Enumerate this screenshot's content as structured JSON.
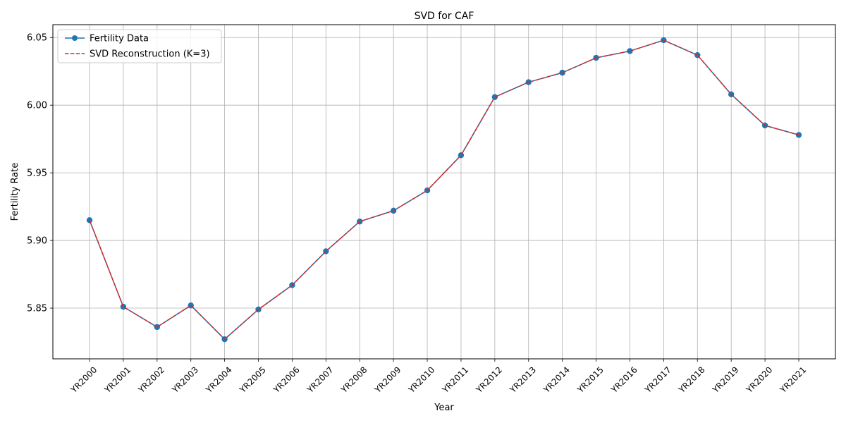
{
  "chart_data": {
    "type": "line",
    "title": "SVD for CAF",
    "xlabel": "Year",
    "ylabel": "Fertility Rate",
    "categories": [
      "YR2000",
      "YR2001",
      "YR2002",
      "YR2003",
      "YR2004",
      "YR2005",
      "YR2006",
      "YR2007",
      "YR2008",
      "YR2009",
      "YR2010",
      "YR2011",
      "YR2012",
      "YR2013",
      "YR2014",
      "YR2015",
      "YR2016",
      "YR2017",
      "YR2018",
      "YR2019",
      "YR2020",
      "YR2021"
    ],
    "series": [
      {
        "name": "Fertility Data",
        "color": "#1f77b4",
        "style": "solid-with-markers",
        "values": [
          5.915,
          5.851,
          5.836,
          5.852,
          5.827,
          5.849,
          5.867,
          5.892,
          5.914,
          5.922,
          5.937,
          5.963,
          6.006,
          6.017,
          6.024,
          6.035,
          6.04,
          6.048,
          6.037,
          6.008,
          5.985,
          5.978
        ]
      },
      {
        "name": "SVD Reconstruction (K=3)",
        "color": "#d62728",
        "style": "dashed",
        "values": [
          5.915,
          5.851,
          5.836,
          5.852,
          5.827,
          5.849,
          5.867,
          5.892,
          5.914,
          5.922,
          5.937,
          5.963,
          6.006,
          6.017,
          6.024,
          6.035,
          6.04,
          6.048,
          6.037,
          6.008,
          5.985,
          5.978
        ]
      }
    ],
    "ylim": [
      5.8125,
      6.0595
    ],
    "yticks": [
      5.85,
      5.9,
      5.95,
      6.0,
      6.05
    ],
    "ytick_labels": [
      "5.85",
      "5.90",
      "5.95",
      "6.00",
      "6.05"
    ],
    "grid": true,
    "legend_position": "top-left"
  }
}
